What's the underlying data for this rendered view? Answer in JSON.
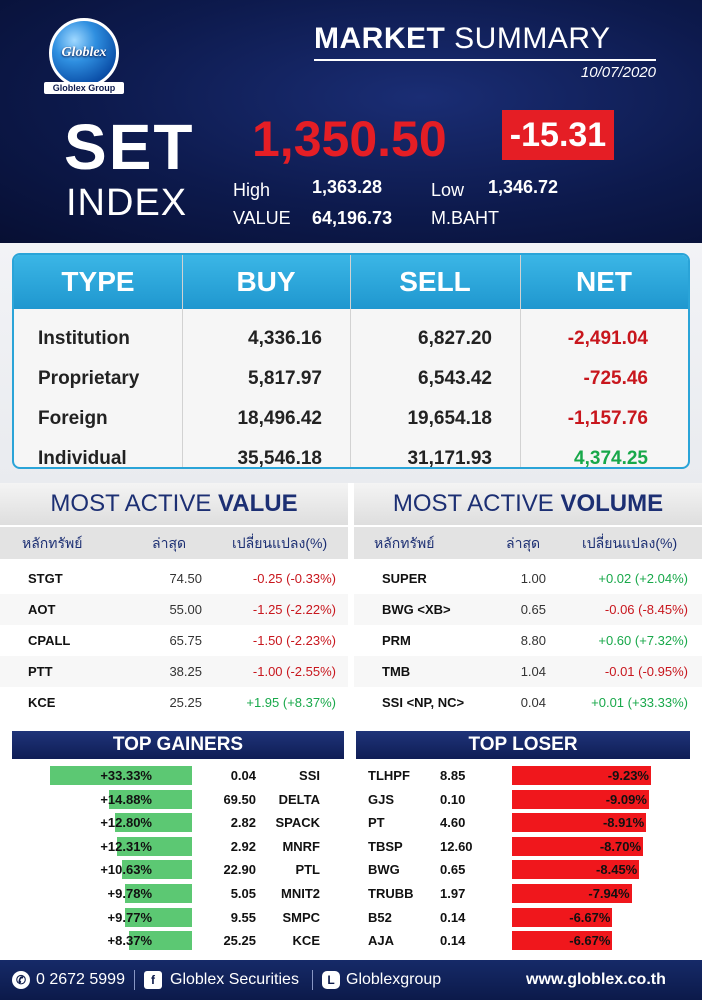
{
  "header": {
    "logo_text": "Globlex",
    "logo_subtext": "Globlex Group",
    "title_bold": "MARKET",
    "title_light": " SUMMARY",
    "date": "10/07/2020",
    "index_name_line1": "SET",
    "index_name_line2": "INDEX",
    "index_value": "1,350.50",
    "index_change": "-15.31",
    "high_label": "High",
    "high_value": "1,363.28",
    "low_label": "Low",
    "low_value": "1,346.72",
    "value_label": "VALUE",
    "value_amount": "64,196.73",
    "value_unit": "M.BAHT"
  },
  "investor_table": {
    "headers": [
      "TYPE",
      "BUY",
      "SELL",
      "NET"
    ],
    "rows": [
      {
        "type": "Institution",
        "buy": "4,336.16",
        "sell": "6,827.20",
        "net": "-2,491.04",
        "sign": "neg"
      },
      {
        "type": "Proprietary",
        "buy": "5,817.97",
        "sell": "6,543.42",
        "net": "-725.46",
        "sign": "neg"
      },
      {
        "type": "Foreign",
        "buy": "18,496.42",
        "sell": "19,654.18",
        "net": "-1,157.76",
        "sign": "neg"
      },
      {
        "type": "Individual",
        "buy": "35,546.18",
        "sell": "31,171.93",
        "net": "4,374.25",
        "sign": "pos"
      }
    ]
  },
  "most_active_value": {
    "title_light": "MOST ACTIVE ",
    "title_bold": "VALUE",
    "col_symbol": "หลักทรัพย์",
    "col_last": "ล่าสุด",
    "col_change": "เปลี่ยนแปลง(%)",
    "rows": [
      {
        "symbol": "STGT",
        "last": "74.50",
        "change": "-0.25 (-0.33%)",
        "sign": "neg"
      },
      {
        "symbol": "AOT",
        "last": "55.00",
        "change": "-1.25 (-2.22%)",
        "sign": "neg"
      },
      {
        "symbol": "CPALL",
        "last": "65.75",
        "change": "-1.50 (-2.23%)",
        "sign": "neg"
      },
      {
        "symbol": "PTT",
        "last": "38.25",
        "change": "-1.00 (-2.55%)",
        "sign": "neg"
      },
      {
        "symbol": "KCE",
        "last": "25.25",
        "change": "+1.95 (+8.37%)",
        "sign": "pos"
      }
    ]
  },
  "most_active_volume": {
    "title_light": "MOST ACTIVE ",
    "title_bold": "VOLUME",
    "col_symbol": "หลักทรัพย์",
    "col_last": "ล่าสุด",
    "col_change": "เปลี่ยนแปลง(%)",
    "rows": [
      {
        "symbol": "SUPER",
        "last": "1.00",
        "change": "+0.02 (+2.04%)",
        "sign": "pos"
      },
      {
        "symbol": "BWG <XB>",
        "last": "0.65",
        "change": "-0.06 (-8.45%)",
        "sign": "neg"
      },
      {
        "symbol": "PRM",
        "last": "8.80",
        "change": "+0.60 (+7.32%)",
        "sign": "pos"
      },
      {
        "symbol": "TMB",
        "last": "1.04",
        "change": "-0.01 (-0.95%)",
        "sign": "neg"
      },
      {
        "symbol": "SSI <NP, NC>",
        "last": "0.04",
        "change": "+0.01 (+33.33%)",
        "sign": "pos"
      }
    ]
  },
  "top_gainers": {
    "title": "TOP GAINERS",
    "rows": [
      {
        "pct": "+33.33%",
        "pct_value": 33.33,
        "price": "0.04",
        "symbol": "SSI"
      },
      {
        "pct": "+14.88%",
        "pct_value": 14.88,
        "price": "69.50",
        "symbol": "DELTA"
      },
      {
        "pct": "+12.80%",
        "pct_value": 12.8,
        "price": "2.82",
        "symbol": "SPACK"
      },
      {
        "pct": "+12.31%",
        "pct_value": 12.31,
        "price": "2.92",
        "symbol": "MNRF"
      },
      {
        "pct": "+10.63%",
        "pct_value": 10.63,
        "price": "22.90",
        "symbol": "PTL"
      },
      {
        "pct": "+9.78%",
        "pct_value": 9.78,
        "price": "5.05",
        "symbol": "MNIT2"
      },
      {
        "pct": "+9.77%",
        "pct_value": 9.77,
        "price": "9.55",
        "symbol": "SMPC"
      },
      {
        "pct": "+8.37%",
        "pct_value": 8.37,
        "price": "25.25",
        "symbol": "KCE"
      }
    ]
  },
  "top_losers": {
    "title": "TOP LOSER",
    "rows": [
      {
        "symbol": "TLHPF",
        "price": "8.85",
        "pct": "-9.23%",
        "pct_value": -9.23
      },
      {
        "symbol": "GJS",
        "price": "0.10",
        "pct": "-9.09%",
        "pct_value": -9.09
      },
      {
        "symbol": "PT",
        "price": "4.60",
        "pct": "-8.91%",
        "pct_value": -8.91
      },
      {
        "symbol": "TBSP",
        "price": "12.60",
        "pct": "-8.70%",
        "pct_value": -8.7
      },
      {
        "symbol": "BWG",
        "price": "0.65",
        "pct": "-8.45%",
        "pct_value": -8.45
      },
      {
        "symbol": "TRUBB",
        "price": "1.97",
        "pct": "-7.94%",
        "pct_value": -7.94
      },
      {
        "symbol": "B52",
        "price": "0.14",
        "pct": "-6.67%",
        "pct_value": -6.67
      },
      {
        "symbol": "AJA",
        "price": "0.14",
        "pct": "-6.67%",
        "pct_value": -6.67
      }
    ]
  },
  "footer": {
    "phone": "0 2672 5999",
    "facebook": "Globlex Securities",
    "line": "Globlexgroup",
    "website": "www.globlex.co.th",
    "icons": [
      "phone-icon",
      "facebook-icon",
      "line-icon"
    ]
  },
  "colors": {
    "negative": "#c8161d",
    "positive": "#18a84a",
    "accent_blue": "#2aa4d8",
    "navy": "#0d1a4d",
    "loser_bar": "#f0171c",
    "gainer_bar": "#5cc873"
  }
}
